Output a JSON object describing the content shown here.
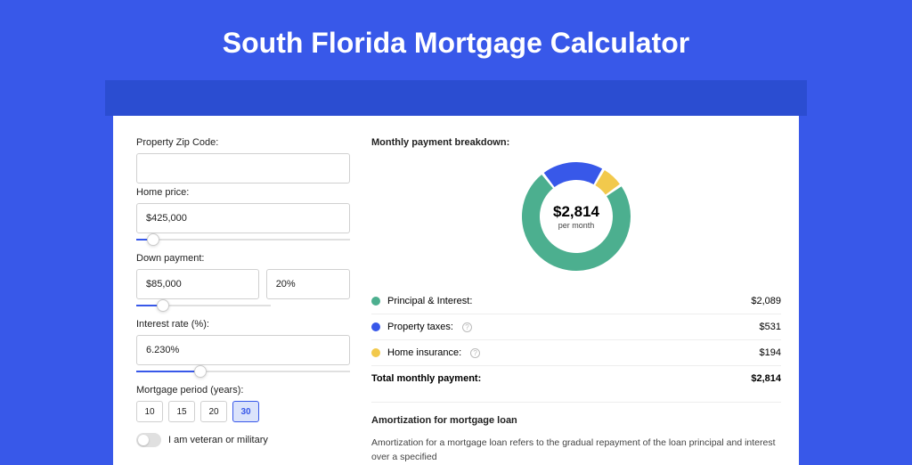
{
  "page": {
    "title": "South Florida Mortgage Calculator",
    "bg_color": "#3858e9",
    "stripe_color": "#2b4dd1",
    "card_bg": "#ffffff"
  },
  "form": {
    "zip": {
      "label": "Property Zip Code:",
      "value": ""
    },
    "price": {
      "label": "Home price:",
      "value": "$425,000",
      "slider_pct": 8
    },
    "down": {
      "label": "Down payment:",
      "value": "$85,000",
      "pct": "20%",
      "slider_pct": 20
    },
    "rate": {
      "label": "Interest rate (%):",
      "value": "6.230%",
      "slider_pct": 30
    },
    "period": {
      "label": "Mortgage period (years):",
      "options": [
        "10",
        "15",
        "20",
        "30"
      ],
      "selected": "30"
    },
    "veteran": {
      "label": "I am veteran or military",
      "on": false
    }
  },
  "breakdown": {
    "title": "Monthly payment breakdown:",
    "center_amount": "$2,814",
    "center_sub": "per month",
    "items": [
      {
        "label": "Principal & Interest:",
        "amount": "$2,089",
        "color": "#4caf8f",
        "info": false
      },
      {
        "label": "Property taxes:",
        "amount": "$531",
        "color": "#3858e9",
        "info": true
      },
      {
        "label": "Home insurance:",
        "amount": "$194",
        "color": "#f2c94c",
        "info": true
      }
    ],
    "total_label": "Total monthly payment:",
    "total_amount": "$2,814",
    "donut": {
      "size": 122,
      "thickness": 20,
      "slices": [
        {
          "color": "#f2c94c",
          "pct": 6.9
        },
        {
          "color": "#4caf8f",
          "pct": 74.2
        },
        {
          "color": "#3858e9",
          "pct": 18.9
        }
      ],
      "gap_deg": 3,
      "start_angle": -60
    }
  },
  "amort": {
    "title": "Amortization for mortgage loan",
    "desc": "Amortization for a mortgage loan refers to the gradual repayment of the loan principal and interest over a specified"
  }
}
